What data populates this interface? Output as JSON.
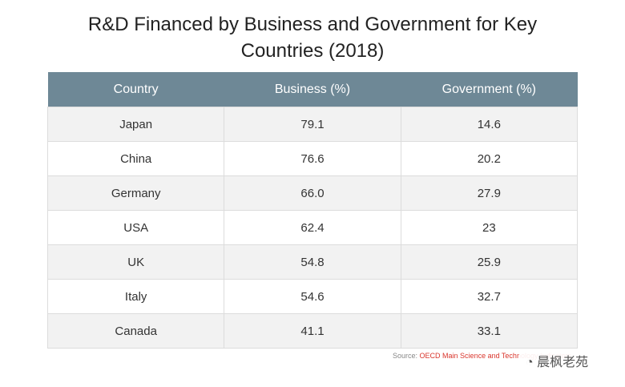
{
  "title": "R&D Financed by Business and Government for Key Countries (2018)",
  "table": {
    "header": [
      "Country",
      "Business (%)",
      "Government (%)"
    ],
    "rows": [
      [
        "Japan",
        "79.1",
        "14.6"
      ],
      [
        "China",
        "76.6",
        "20.2"
      ],
      [
        "Germany",
        "66.0",
        "27.9"
      ],
      [
        "USA",
        "62.4",
        "23"
      ],
      [
        "UK",
        "54.8",
        "25.9"
      ],
      [
        "Italy",
        "54.6",
        "32.7"
      ],
      [
        "Canada",
        "41.1",
        "33.1"
      ]
    ]
  },
  "source": {
    "label": "Source:",
    "text": "OECD Main Science and Technology Indicators"
  },
  "watermark": "晨枫老苑"
}
